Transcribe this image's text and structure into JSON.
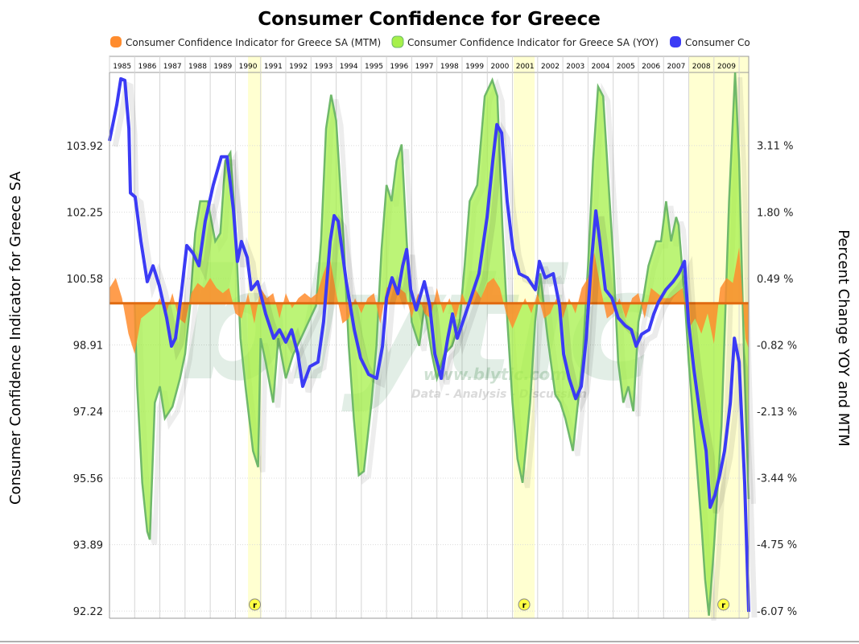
{
  "chart_data": {
    "type": "line",
    "title": "Consumer Confidence for Greece",
    "ylabel": "Consumer Confidence Indicator for Greece SA",
    "ylabel_right": "Percent Change YOY and MTM",
    "xlim": [
      1985,
      2010.38
    ],
    "ylim": [
      92.04,
      105.76
    ],
    "ylim_right": [
      -6.21,
      4.55
    ],
    "x_tick_labels": [
      "1985",
      "1986",
      "1987",
      "1988",
      "1989",
      "1990",
      "1991",
      "1992",
      "1993",
      "1994",
      "1995",
      "1996",
      "1997",
      "1998",
      "1999",
      "2000",
      "2001",
      "2002",
      "2003",
      "2004",
      "2005",
      "2006",
      "2007",
      "2008",
      "2009"
    ],
    "y_tick_labels": [
      "103.92",
      "102.25",
      "100.58",
      "98.91",
      "97.24",
      "95.56",
      "93.89",
      "92.22"
    ],
    "y_tick_values": [
      103.92,
      102.25,
      100.58,
      98.91,
      97.24,
      95.56,
      93.89,
      92.22
    ],
    "y_right_tick_labels": [
      "3.11 %",
      "1.80 %",
      "0.49 %",
      "-0.82 %",
      "-2.13 %",
      "-3.44 %",
      "-4.75 %",
      "-6.07 %"
    ],
    "y_right_tick_values": [
      3.11,
      1.8,
      0.49,
      -0.82,
      -2.13,
      -3.44,
      -4.75,
      -6.07
    ],
    "grid": true,
    "legend_placement": "top",
    "legend": [
      {
        "label": "Consumer Confidence Indicator for Greece SA (MTM)",
        "color": "#ff8c2e"
      },
      {
        "label": "Consumer Confidence Indicator for Greece SA (YOY)",
        "color": "#a6f04a"
      },
      {
        "label": "Consumer Co",
        "color": "#3b3bf5"
      }
    ],
    "recessions": [
      {
        "start": 1990.5,
        "end": 1991.04,
        "marker": "r"
      },
      {
        "start": 2001.05,
        "end": 2001.88,
        "marker": "r"
      },
      {
        "start": 2007.99,
        "end": 2010.38,
        "marker": "r"
      }
    ],
    "series": [
      {
        "key": "mtm",
        "axis": "right",
        "style": "area",
        "color": "#ff8c2e",
        "x_start": 1985,
        "x_step": 0.25,
        "values": [
          0.3,
          0.5,
          0.1,
          -0.6,
          -1.0,
          -0.3,
          -0.2,
          -0.1,
          0.1,
          -0.2,
          0.2,
          -0.3,
          -0.4,
          0.2,
          0.4,
          0.3,
          0.5,
          0.3,
          0.2,
          0.3,
          -0.2,
          -0.3,
          0.2,
          -0.4,
          0.3,
          0.1,
          0.2,
          -0.3,
          0.2,
          -0.1,
          0.1,
          0.2,
          0.1,
          0.2,
          0.6,
          0.9,
          0.2,
          -0.4,
          -0.3,
          0.1,
          -0.2,
          0.1,
          0.2,
          -0.4,
          0.3,
          0.4,
          0.3,
          0.2,
          -0.3,
          0.2,
          -0.2,
          -0.3,
          0.3,
          -0.2,
          0.1,
          -0.3,
          0.2,
          -0.1,
          0.3,
          0.1,
          0.4,
          0.5,
          0.3,
          -0.2,
          -0.5,
          -0.2,
          0.1,
          -0.2,
          0.2,
          -0.3,
          -0.2,
          0.1,
          -0.3,
          0.1,
          -0.2,
          0.3,
          0.5,
          1.0,
          0.3,
          -0.3,
          -0.2,
          0.1,
          -0.3,
          0.1,
          0.2,
          -0.3,
          0.3,
          0.2,
          0.1,
          0.1,
          0.2,
          0.3,
          -0.5,
          -0.3,
          -0.6,
          -0.2,
          -0.8,
          0.3,
          0.5,
          0.4,
          1.1,
          -0.7,
          -0.9
        ]
      },
      {
        "key": "yoy",
        "axis": "right",
        "style": "area",
        "color": "#a6f04a",
        "stroke": "#6fb86a",
        "x": [
          1986.0,
          1986.1,
          1986.3,
          1986.5,
          1986.6,
          1986.8,
          1987.0,
          1987.2,
          1987.5,
          1987.8,
          1988.0,
          1988.2,
          1988.4,
          1988.6,
          1988.9,
          1989.2,
          1989.4,
          1989.6,
          1989.8,
          1990.0,
          1990.2,
          1990.4,
          1990.7,
          1990.9,
          1991.0,
          1991.2,
          1991.5,
          1991.7,
          1992.0,
          1992.3,
          1992.6,
          1992.9,
          1993.2,
          1993.4,
          1993.6,
          1993.8,
          1994.0,
          1994.3,
          1994.5,
          1994.7,
          1994.9,
          1995.1,
          1995.4,
          1995.6,
          1995.8,
          1996.0,
          1996.2,
          1996.4,
          1996.6,
          1996.8,
          1997.0,
          1997.3,
          1997.5,
          1997.8,
          1998.0,
          1998.3,
          1998.6,
          1998.9,
          1999.1,
          1999.3,
          1999.6,
          1999.9,
          2000.2,
          2000.4,
          2000.6,
          2000.8,
          2001.0,
          2001.2,
          2001.4,
          2001.7,
          2001.9,
          2002.1,
          2002.4,
          2002.7,
          2002.9,
          2003.1,
          2003.4,
          2003.6,
          2003.8,
          2004.0,
          2004.2,
          2004.4,
          2004.6,
          2004.8,
          2005.0,
          2005.2,
          2005.4,
          2005.6,
          2005.8,
          2006.0,
          2006.2,
          2006.4,
          2006.7,
          2006.9,
          2007.1,
          2007.3,
          2007.5,
          2007.6,
          2007.85,
          2008.0,
          2008.25,
          2008.5,
          2008.65,
          2008.8,
          2009.0,
          2009.3,
          2009.6,
          2009.84,
          2010.0,
          2010.2,
          2010.38
        ],
        "values": [
          0,
          -1.64,
          -3.54,
          -4.5,
          -4.66,
          -1.96,
          -1.64,
          -2.27,
          -2.04,
          -1.48,
          -1.0,
          -0.05,
          1.38,
          2.01,
          2.01,
          1.22,
          1.38,
          2.81,
          2.97,
          1.54,
          -0.69,
          -1.64,
          -2.91,
          -3.23,
          -0.69,
          -1.16,
          -1.96,
          -0.69,
          -1.48,
          -1.0,
          -0.69,
          -0.37,
          -0.05,
          1.22,
          3.44,
          4.11,
          3.6,
          1.22,
          -0.84,
          -2.27,
          -3.39,
          -3.31,
          -1.96,
          -0.84,
          1.06,
          2.33,
          2.01,
          2.81,
          3.13,
          1.22,
          -0.37,
          -0.84,
          -0.05,
          -1.0,
          -1.48,
          -1.0,
          -0.84,
          -0.37,
          0.74,
          2.01,
          2.33,
          4.08,
          4.4,
          4.08,
          1.54,
          -0.37,
          -1.96,
          -3.07,
          -3.54,
          -1.96,
          -0.37,
          0.59,
          -0.69,
          -1.8,
          -1.96,
          -2.27,
          -2.91,
          -1.96,
          -1.0,
          0.74,
          2.81,
          4.27,
          4.08,
          2.49,
          0.9,
          -1.16,
          -1.96,
          -1.64,
          -2.13,
          -0.37,
          0.11,
          0.74,
          1.22,
          1.22,
          2.01,
          1.22,
          1.7,
          1.54,
          0,
          -1.16,
          -2.75,
          -4.34,
          -5.45,
          -6.16,
          -4.82,
          -2.43,
          2.01,
          4.55,
          2.81,
          -1.16,
          -3.86
        ]
      },
      {
        "key": "level",
        "axis": "left",
        "style": "line",
        "color": "#3b3bf5",
        "x": [
          1985.0,
          1985.29,
          1985.45,
          1985.61,
          1985.77,
          1985.83,
          1986.02,
          1986.25,
          1986.5,
          1986.73,
          1986.98,
          1987.27,
          1987.46,
          1987.62,
          1987.85,
          1988.07,
          1988.32,
          1988.55,
          1988.8,
          1989.12,
          1989.44,
          1989.67,
          1989.92,
          1990.08,
          1990.24,
          1990.47,
          1990.63,
          1990.88,
          1991.2,
          1991.52,
          1991.75,
          1992.0,
          1992.23,
          1992.48,
          1992.67,
          1992.96,
          1993.28,
          1993.5,
          1993.76,
          1993.92,
          1994.08,
          1994.4,
          1994.72,
          1994.97,
          1995.29,
          1995.61,
          1995.84,
          1996.0,
          1996.22,
          1996.45,
          1996.64,
          1996.8,
          1996.96,
          1997.18,
          1997.5,
          1997.72,
          1997.92,
          1998.17,
          1998.43,
          1998.62,
          1998.81,
          1999.03,
          1999.35,
          1999.67,
          1999.99,
          2000.22,
          2000.38,
          2000.57,
          2000.79,
          2001.02,
          2001.27,
          2001.59,
          2001.91,
          2002.07,
          2002.3,
          2002.62,
          2002.87,
          2003.03,
          2003.25,
          2003.51,
          2003.73,
          2003.93,
          2004.12,
          2004.31,
          2004.47,
          2004.69,
          2004.95,
          2005.2,
          2005.49,
          2005.72,
          2005.91,
          2006.13,
          2006.42,
          2006.61,
          2006.8,
          2007.09,
          2007.38,
          2007.6,
          2007.83,
          2007.99,
          2008.21,
          2008.47,
          2008.69,
          2008.85,
          2009.04,
          2009.23,
          2009.42,
          2009.65,
          2009.81,
          2010.0,
          2010.22,
          2010.38
        ],
        "values": [
          104.04,
          104.95,
          105.6,
          105.56,
          104.35,
          102.73,
          102.63,
          101.51,
          100.5,
          100.9,
          100.4,
          99.59,
          98.88,
          99.08,
          100.2,
          101.41,
          101.21,
          100.9,
          102.02,
          102.93,
          103.64,
          103.64,
          102.32,
          101.01,
          101.51,
          101.11,
          100.3,
          100.5,
          99.69,
          99.08,
          99.29,
          98.98,
          99.29,
          98.68,
          97.87,
          98.37,
          98.48,
          99.49,
          101.51,
          102.16,
          102.02,
          100.5,
          99.29,
          98.58,
          98.17,
          98.07,
          98.88,
          100.09,
          100.6,
          100.2,
          100.9,
          101.31,
          100.3,
          99.79,
          100.5,
          99.89,
          98.68,
          98.07,
          99.08,
          99.69,
          99.08,
          99.49,
          100.09,
          100.7,
          102.12,
          103.54,
          104.45,
          104.24,
          102.52,
          101.31,
          100.7,
          100.6,
          100.3,
          101.01,
          100.6,
          100.7,
          99.89,
          98.68,
          98.07,
          97.56,
          97.87,
          99.08,
          100.9,
          102.28,
          101.51,
          100.3,
          100.09,
          99.59,
          99.39,
          99.29,
          98.88,
          99.18,
          99.29,
          99.69,
          99.99,
          100.3,
          100.5,
          100.7,
          101.01,
          99.49,
          98.27,
          97.06,
          96.25,
          94.83,
          95.14,
          95.64,
          96.25,
          97.46,
          99.08,
          98.48,
          95.44,
          92.2
        ]
      }
    ],
    "watermark": {
      "logo": "blytic",
      "url": "www.blytic.com",
      "tagline": "Data - Analysis - Discussion"
    }
  }
}
